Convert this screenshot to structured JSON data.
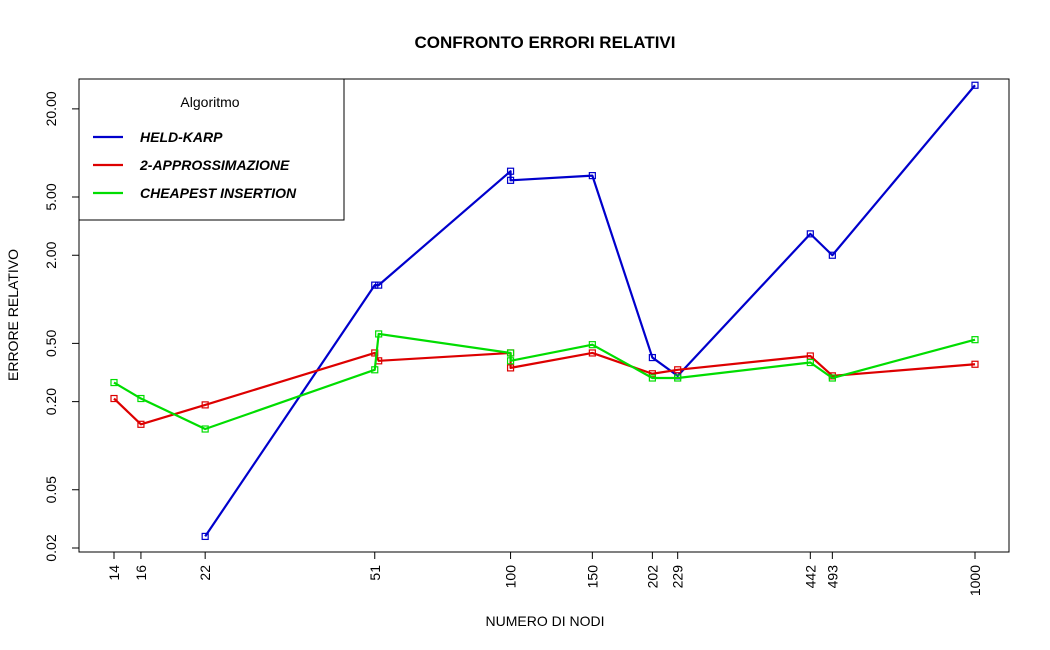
{
  "chart_data": {
    "type": "line",
    "title": "CONFRONTO ERRORI RELATIVI",
    "xlabel": "NUMERO DI NODI",
    "ylabel": "ERRORE RELATIVO",
    "x_scale": "log",
    "y_scale": "log",
    "xlim": [
      14,
      1000
    ],
    "ylim": [
      0.02,
      32
    ],
    "x_ticks": [
      14,
      16,
      22,
      51,
      100,
      150,
      202,
      229,
      442,
      493,
      1000
    ],
    "x_tick_labels": [
      "14",
      "16",
      "22",
      "51",
      "100",
      "150",
      "202",
      "229",
      "442",
      "493",
      "1000"
    ],
    "y_ticks": [
      0.02,
      0.05,
      0.2,
      0.5,
      2,
      5,
      20
    ],
    "y_tick_labels": [
      "0.02",
      "0.05",
      "0.20",
      "0.50",
      "2.00",
      "5.00",
      "20.00"
    ],
    "grid": false,
    "legend": {
      "title": "Algoritmo",
      "placement": "top-left"
    },
    "series": [
      {
        "name": "HELD-KARP",
        "color": "#0000CC",
        "points": [
          [
            22,
            0.024
          ],
          [
            51,
            1.25
          ],
          [
            52,
            1.25
          ],
          [
            100,
            7.5
          ],
          [
            100,
            6.5
          ],
          [
            150,
            7.0
          ],
          [
            202,
            0.4
          ],
          [
            229,
            0.3
          ],
          [
            442,
            2.8
          ],
          [
            493,
            2.0
          ],
          [
            1000,
            29
          ]
        ]
      },
      {
        "name": "2-APPROSSIMAZIONE",
        "color": "#DD0000",
        "points": [
          [
            14,
            0.21
          ],
          [
            16,
            0.14
          ],
          [
            22,
            0.19
          ],
          [
            51,
            0.43
          ],
          [
            52,
            0.38
          ],
          [
            100,
            0.43
          ],
          [
            100,
            0.34
          ],
          [
            150,
            0.43
          ],
          [
            202,
            0.31
          ],
          [
            229,
            0.33
          ],
          [
            442,
            0.41
          ],
          [
            493,
            0.3
          ],
          [
            1000,
            0.36
          ]
        ]
      },
      {
        "name": "CHEAPEST INSERTION",
        "color": "#00DD00",
        "points": [
          [
            14,
            0.27
          ],
          [
            16,
            0.21
          ],
          [
            22,
            0.13
          ],
          [
            51,
            0.33
          ],
          [
            52,
            0.58
          ],
          [
            100,
            0.43
          ],
          [
            100,
            0.38
          ],
          [
            150,
            0.49
          ],
          [
            202,
            0.29
          ],
          [
            229,
            0.29
          ],
          [
            442,
            0.37
          ],
          [
            493,
            0.29
          ],
          [
            1000,
            0.53
          ]
        ]
      }
    ]
  }
}
